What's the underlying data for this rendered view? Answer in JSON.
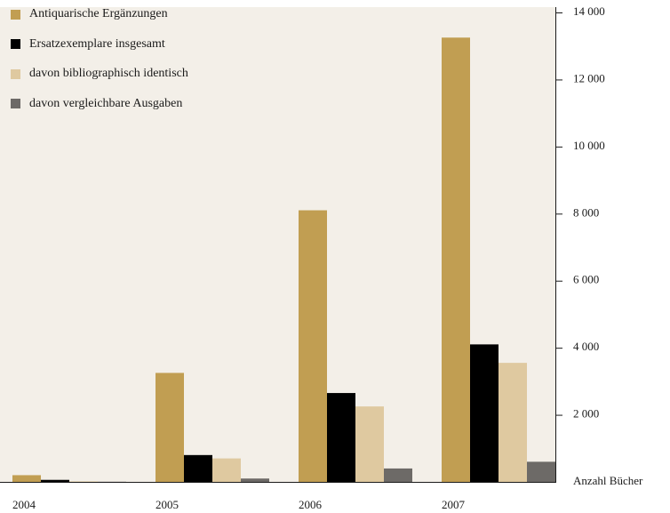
{
  "chart_data": {
    "type": "bar",
    "categories": [
      "2004",
      "2005",
      "2006",
      "2007"
    ],
    "series": [
      {
        "name": "Antiquarische Ergänzungen",
        "color": "#c19e52",
        "values": [
          200,
          3250,
          8100,
          13250
        ]
      },
      {
        "name": "Ersatzexemplare insgesamt",
        "color": "#000000",
        "values": [
          60,
          800,
          2650,
          4100
        ]
      },
      {
        "name": "davon bibliographisch identisch",
        "color": "#dfc9a0",
        "values": [
          15,
          700,
          2250,
          3550
        ]
      },
      {
        "name": "davon vergleichbare Ausgaben",
        "color": "#6d6a67",
        "values": [
          5,
          100,
          400,
          600
        ]
      }
    ],
    "y_ticks": [
      "2 000",
      "4 000",
      "6 000",
      "8 000",
      "10 000",
      "12 000",
      "14 000"
    ],
    "ylabel": "Anzahl Bücher",
    "ylim": [
      0,
      14000
    ],
    "legend_position": "top-left",
    "background_color": "#f3efe8"
  }
}
